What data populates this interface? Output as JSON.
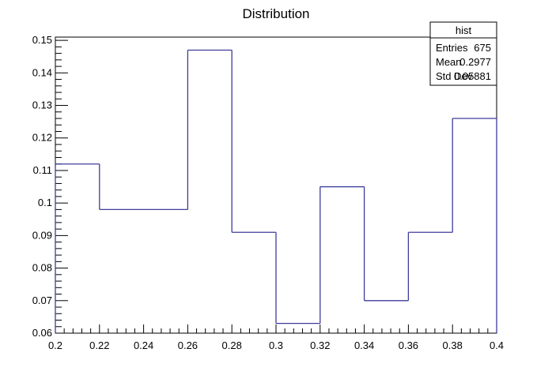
{
  "chart_data": {
    "type": "histogram",
    "title": "Distribution",
    "xlabel": "",
    "ylabel": "",
    "xlim": [
      0.2,
      0.4
    ],
    "ylim": [
      0.06,
      0.151
    ],
    "bin_edges": [
      0.2,
      0.22,
      0.26,
      0.28,
      0.3,
      0.32,
      0.34,
      0.36,
      0.38,
      0.4
    ],
    "values": [
      0.112,
      0.098,
      0.147,
      0.091,
      0.063,
      0.105,
      0.07,
      0.091,
      0.126
    ],
    "x_ticks": [
      "0.2",
      "0.22",
      "0.24",
      "0.26",
      "0.28",
      "0.3",
      "0.32",
      "0.34",
      "0.36",
      "0.38",
      "0.4"
    ],
    "y_ticks": [
      "0.06",
      "0.07",
      "0.08",
      "0.09",
      "0.1",
      "0.11",
      "0.12",
      "0.13",
      "0.14",
      "0.15"
    ],
    "line_color": "#3d3d9a",
    "grid": false,
    "stats_box": {
      "name": "hist",
      "rows": [
        {
          "label": "Entries",
          "value": "675"
        },
        {
          "label": "Mean",
          "value": "0.2977"
        },
        {
          "label": "Std Dev",
          "value": "0.05881"
        }
      ]
    }
  }
}
